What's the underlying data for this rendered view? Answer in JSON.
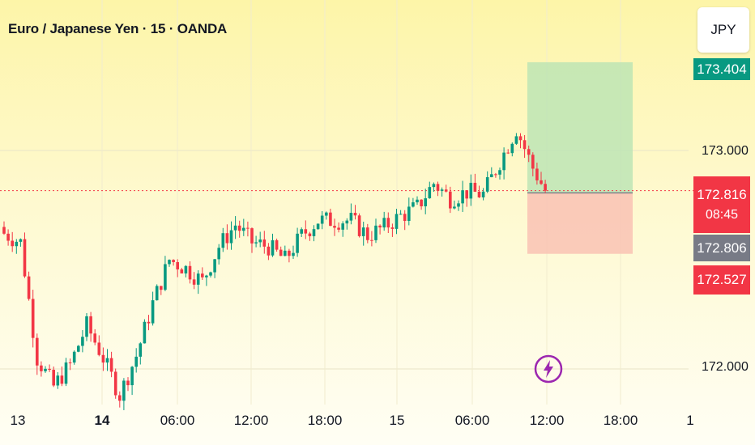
{
  "header": {
    "title": "Euro / Japanese Yen · 15 · OANDA"
  },
  "toolbar": {
    "currency_label": "JPY"
  },
  "price_axis": {
    "labels": [
      "173.000",
      "172.000"
    ],
    "target_price": "173.404",
    "current_price": "172.816",
    "countdown": "08:45",
    "entry_price": "172.806",
    "stop_price": "172.527"
  },
  "time_axis": {
    "labels": [
      {
        "text": "13",
        "bold": false
      },
      {
        "text": "14",
        "bold": true
      },
      {
        "text": "06:00",
        "bold": false
      },
      {
        "text": "12:00",
        "bold": false
      },
      {
        "text": "18:00",
        "bold": false
      },
      {
        "text": "15",
        "bold": false
      },
      {
        "text": "06:00",
        "bold": false
      },
      {
        "text": "12:00",
        "bold": false
      },
      {
        "text": "18:00",
        "bold": false
      },
      {
        "text": "1",
        "bold": false
      }
    ]
  },
  "colors": {
    "up": "#089981",
    "down": "#f23645",
    "target_zone": "#b9e3b4",
    "stop_zone": "#f9c2b4",
    "last_price": "#f23645",
    "entry_tag": "#787b86",
    "target_tag": "#089981",
    "flash_icon": "#9c27b0"
  },
  "icons": {
    "alert": "lightning-bolt-icon"
  },
  "chart_data": {
    "type": "candlestick",
    "title": "Euro / Japanese Yen · 15 · OANDA",
    "symbol": "EURJPY",
    "interval": "15",
    "source": "OANDA",
    "y_axis_ticks": [
      173.0,
      172.0
    ],
    "ylim": [
      171.6,
      173.5
    ],
    "x_axis_ticks": [
      "13",
      "14",
      "06:00",
      "12:00",
      "18:00",
      "15",
      "06:00",
      "12:00",
      "18:00",
      "1"
    ],
    "last_price": 172.816,
    "position": {
      "type": "long",
      "target": 173.404,
      "entry": 172.806,
      "stop": 172.527
    },
    "close_path": [
      [
        0,
        172.62
      ],
      [
        4,
        172.58
      ],
      [
        8,
        172.05
      ],
      [
        12,
        171.92
      ],
      [
        16,
        172.02
      ],
      [
        20,
        172.2
      ],
      [
        24,
        172.05
      ],
      [
        28,
        171.88
      ],
      [
        32,
        172.06
      ],
      [
        36,
        172.3
      ],
      [
        40,
        172.5
      ],
      [
        44,
        172.46
      ],
      [
        48,
        172.4
      ],
      [
        52,
        172.56
      ],
      [
        56,
        172.66
      ],
      [
        60,
        172.58
      ],
      [
        64,
        172.56
      ],
      [
        68,
        172.5
      ],
      [
        72,
        172.61
      ],
      [
        76,
        172.68
      ],
      [
        80,
        172.68
      ],
      [
        84,
        172.68
      ],
      [
        88,
        172.61
      ],
      [
        92,
        172.65
      ],
      [
        96,
        172.7
      ],
      [
        100,
        172.74
      ],
      [
        104,
        172.85
      ],
      [
        108,
        172.78
      ],
      [
        112,
        172.81
      ],
      [
        116,
        172.8
      ],
      [
        120,
        172.95
      ],
      [
        124,
        173.1
      ],
      [
        128,
        172.92
      ],
      [
        131,
        172.816
      ]
    ]
  }
}
